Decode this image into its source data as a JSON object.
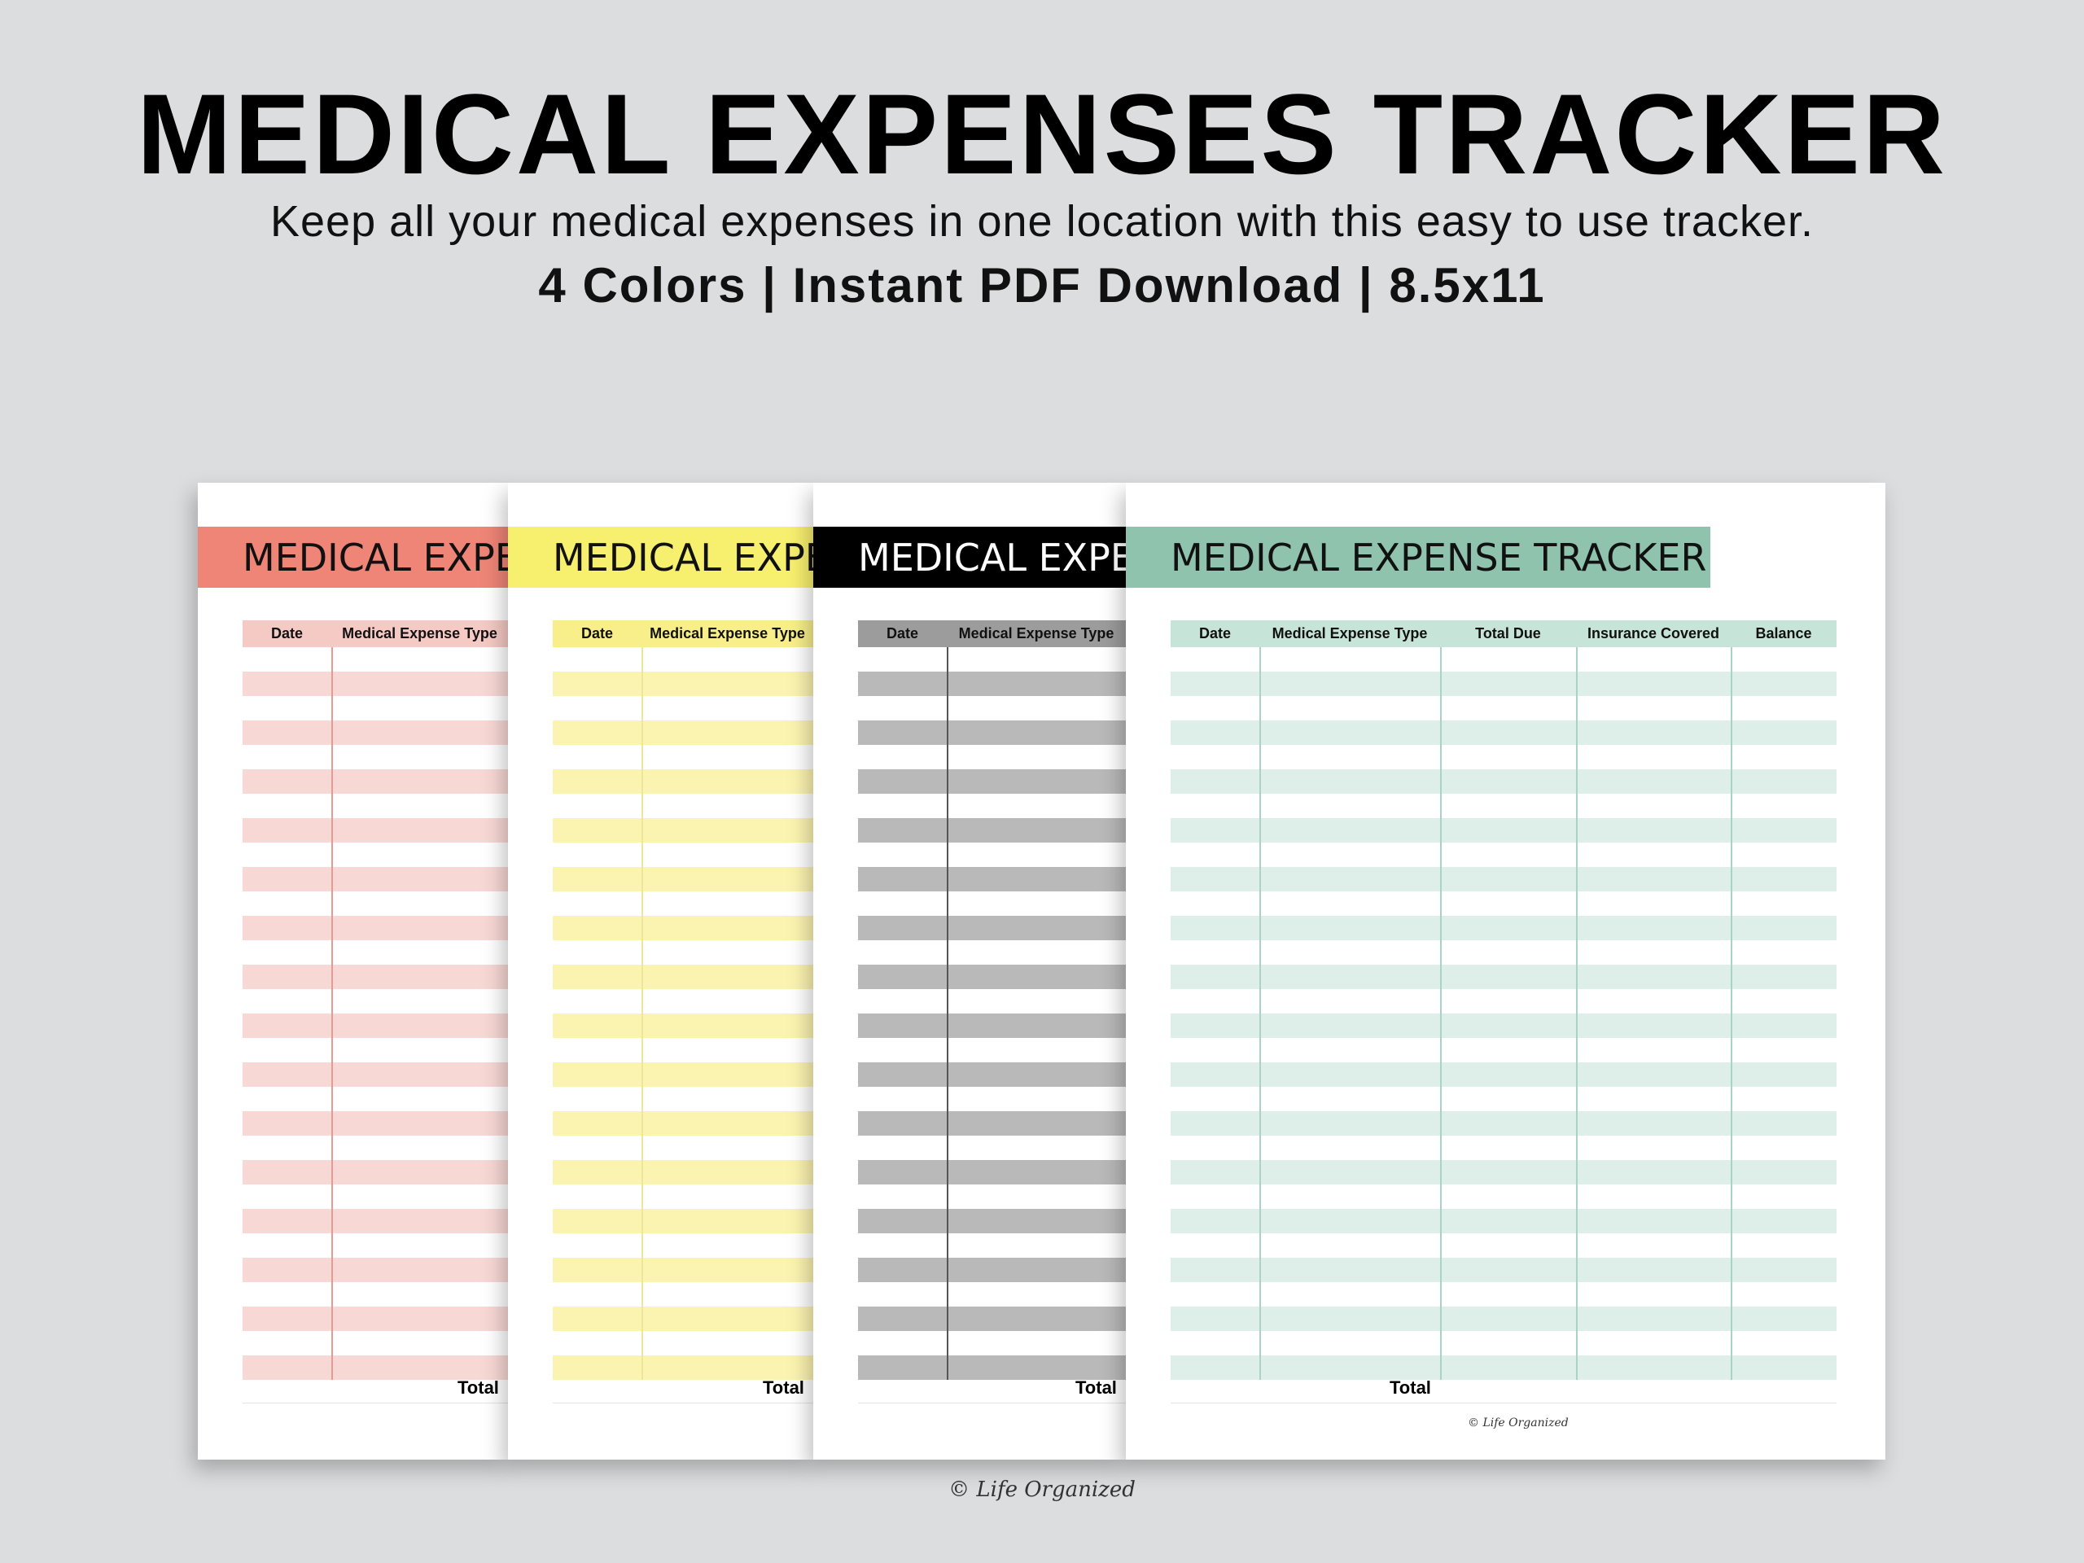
{
  "header": {
    "title": "MEDICAL EXPENSES TRACKER",
    "subtitle": "Keep all your medical expenses in one location with this easy to use tracker.",
    "specs": "4 Colors | Instant PDF Download | 8.5x11"
  },
  "tracker": {
    "title": "MEDICAL EXPENSE TRACKER",
    "columns": [
      "Date",
      "Medical Expense Type",
      "Total Due",
      "Insurance Covered",
      "Balance"
    ],
    "total_label": "Total",
    "footer": "© Life Organized",
    "row_count": 30
  },
  "pages": [
    {
      "color": "red",
      "band": "#ee8577",
      "band_text": "#111111",
      "head_row": "#f5c9c4",
      "stripe": "#f8d8d4",
      "line": "#e89a92"
    },
    {
      "color": "yellow",
      "band": "#f7ef6e",
      "band_text": "#111111",
      "head_row": "#f8ef8a",
      "stripe": "#fbf4b0",
      "line": "#eee59a"
    },
    {
      "color": "black",
      "band": "#000000",
      "band_text": "#ffffff",
      "head_row": "#9c9c9c",
      "stripe": "#b9b9b9",
      "line": "#555555"
    },
    {
      "color": "green",
      "band": "#8fc3ae",
      "band_text": "#111111",
      "head_row": "#c7e4d9",
      "stripe": "#deefe9",
      "line": "#a9d4c4"
    }
  ],
  "caption": "© Life Organized"
}
